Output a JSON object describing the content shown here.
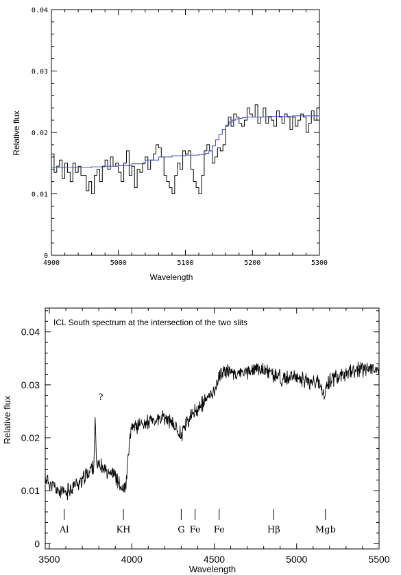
{
  "chart_data": [
    {
      "type": "line",
      "title": "",
      "xlabel": "Wavelength",
      "ylabel": "Relative flux",
      "xlim": [
        4900,
        5300
      ],
      "ylim": [
        0,
        0.04
      ],
      "x_ticks": [
        "4900",
        "5000",
        "5100",
        "5200",
        "5300"
      ],
      "y_ticks": [
        "0",
        "0.01",
        "0.02",
        "0.03",
        "0.04"
      ],
      "grid": false,
      "series": [
        {
          "color": "#000000",
          "style": "step",
          "x": [
            4900,
            4904,
            4908,
            4912,
            4916,
            4920,
            4924,
            4928,
            4932,
            4936,
            4940,
            4944,
            4948,
            4952,
            4956,
            4960,
            4964,
            4968,
            4972,
            4976,
            4980,
            4984,
            4988,
            4992,
            4996,
            5000,
            5004,
            5008,
            5012,
            5016,
            5020,
            5024,
            5028,
            5032,
            5036,
            5040,
            5044,
            5048,
            5052,
            5056,
            5060,
            5064,
            5068,
            5072,
            5076,
            5080,
            5084,
            5088,
            5092,
            5096,
            5100,
            5104,
            5108,
            5112,
            5116,
            5120,
            5124,
            5128,
            5132,
            5136,
            5140,
            5144,
            5148,
            5152,
            5156,
            5160,
            5164,
            5168,
            5172,
            5176,
            5180,
            5184,
            5188,
            5192,
            5196,
            5200,
            5204,
            5208,
            5212,
            5216,
            5220,
            5224,
            5228,
            5232,
            5236,
            5240,
            5244,
            5248,
            5252,
            5256,
            5260,
            5264,
            5268,
            5272,
            5276,
            5280,
            5284,
            5288,
            5292,
            5296
          ],
          "y": [
            0.0165,
            0.0135,
            0.0145,
            0.0155,
            0.0125,
            0.015,
            0.0135,
            0.012,
            0.015,
            0.0135,
            0.0145,
            0.013,
            0.013,
            0.0105,
            0.012,
            0.01,
            0.013,
            0.014,
            0.012,
            0.0145,
            0.0155,
            0.014,
            0.016,
            0.0145,
            0.015,
            0.0135,
            0.012,
            0.015,
            0.017,
            0.013,
            0.0145,
            0.011,
            0.014,
            0.0135,
            0.015,
            0.016,
            0.014,
            0.0155,
            0.0165,
            0.018,
            0.0175,
            0.016,
            0.013,
            0.012,
            0.011,
            0.01,
            0.013,
            0.015,
            0.014,
            0.017,
            0.0165,
            0.017,
            0.014,
            0.012,
            0.011,
            0.01,
            0.013,
            0.017,
            0.018,
            0.017,
            0.015,
            0.016,
            0.0175,
            0.017,
            0.018,
            0.021,
            0.0225,
            0.021,
            0.023,
            0.0225,
            0.0215,
            0.021,
            0.022,
            0.024,
            0.023,
            0.0225,
            0.0245,
            0.0215,
            0.0225,
            0.024,
            0.0215,
            0.0225,
            0.022,
            0.021,
            0.0235,
            0.0225,
            0.0215,
            0.023,
            0.0225,
            0.0205,
            0.0225,
            0.021,
            0.022,
            0.023,
            0.0225,
            0.02,
            0.0215,
            0.0235,
            0.022,
            0.024
          ]
        },
        {
          "color": "#4a55c8",
          "style": "step",
          "x": [
            4900,
            4920,
            4940,
            4960,
            4980,
            5000,
            5020,
            5040,
            5060,
            5080,
            5100,
            5110,
            5120,
            5130,
            5135,
            5140,
            5145,
            5150,
            5155,
            5160,
            5165,
            5170,
            5175,
            5180,
            5185,
            5190,
            5200,
            5220,
            5240,
            5260,
            5280,
            5300
          ],
          "y": [
            0.0143,
            0.0143,
            0.0143,
            0.0144,
            0.0145,
            0.0146,
            0.0149,
            0.0155,
            0.016,
            0.0162,
            0.0163,
            0.0163,
            0.0164,
            0.0166,
            0.017,
            0.0178,
            0.0188,
            0.0197,
            0.0205,
            0.0212,
            0.0217,
            0.022,
            0.0222,
            0.0223,
            0.0224,
            0.0225,
            0.0225,
            0.0226,
            0.0226,
            0.0227,
            0.0227,
            0.0226
          ]
        }
      ]
    },
    {
      "type": "line",
      "title": "ICL South spectrum at the intersection of the two slits",
      "xlabel": "Wavelength",
      "ylabel": "Relative flux",
      "xlim": [
        3475,
        5500
      ],
      "ylim": [
        -0.001,
        0.0445
      ],
      "x_ticks": [
        "3500",
        "4000",
        "4500",
        "5000",
        "5500"
      ],
      "y_ticks": [
        "0",
        "0.01",
        "0.02",
        "0.03",
        "0.04"
      ],
      "grid": false,
      "annotation": "?",
      "annotation_x": 3778,
      "annotation_y": 0.0265,
      "line_markers": [
        {
          "label": "Al",
          "x": 3590
        },
        {
          "label": "KH",
          "x": 3949
        },
        {
          "label": "G",
          "x": 4300
        },
        {
          "label": "Fe",
          "x": 4384
        },
        {
          "label": "Fe",
          "x": 4530
        },
        {
          "label": "Hβ",
          "x": 4861
        },
        {
          "label": "Mgb",
          "x": 5175
        }
      ],
      "series": [
        {
          "color": "#000000",
          "style": "line",
          "anchors_x": [
            3475,
            3500,
            3550,
            3600,
            3650,
            3700,
            3750,
            3770,
            3778,
            3786,
            3800,
            3850,
            3900,
            3925,
            3950,
            3965,
            3975,
            3990,
            4000,
            4050,
            4100,
            4150,
            4200,
            4250,
            4280,
            4300,
            4320,
            4350,
            4400,
            4450,
            4500,
            4530,
            4560,
            4600,
            4650,
            4700,
            4750,
            4800,
            4850,
            4900,
            4950,
            5000,
            5050,
            5100,
            5150,
            5170,
            5190,
            5200,
            5250,
            5300,
            5350,
            5400,
            5450,
            5500
          ],
          "anchors_y": [
            0.0125,
            0.0115,
            0.01,
            0.0095,
            0.011,
            0.012,
            0.014,
            0.015,
            0.0245,
            0.015,
            0.0145,
            0.014,
            0.013,
            0.011,
            0.01,
            0.011,
            0.015,
            0.02,
            0.022,
            0.0225,
            0.023,
            0.0232,
            0.0238,
            0.0225,
            0.0215,
            0.0205,
            0.0225,
            0.0235,
            0.0255,
            0.027,
            0.029,
            0.0315,
            0.0328,
            0.0325,
            0.032,
            0.0325,
            0.033,
            0.0328,
            0.032,
            0.0315,
            0.031,
            0.0315,
            0.031,
            0.0305,
            0.03,
            0.028,
            0.03,
            0.031,
            0.0315,
            0.032,
            0.0325,
            0.033,
            0.0335,
            0.0325
          ],
          "noise_amplitude": 0.0012
        }
      ]
    }
  ]
}
